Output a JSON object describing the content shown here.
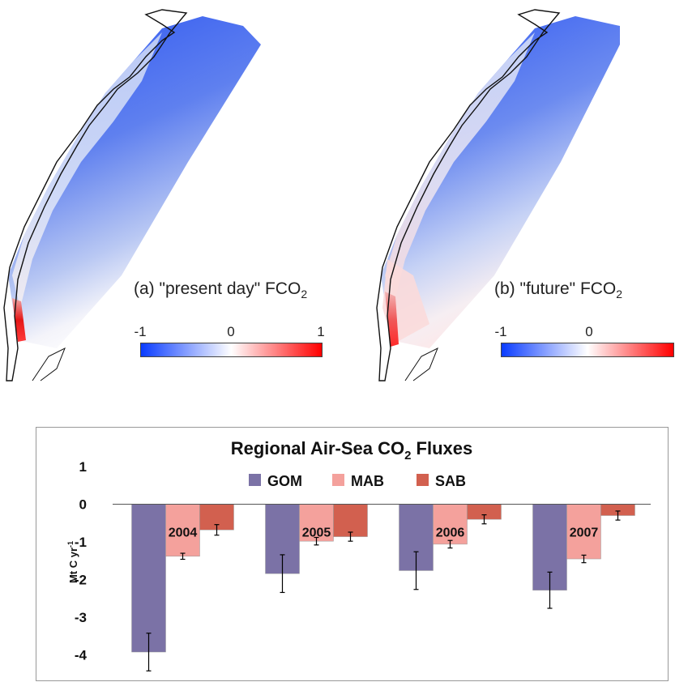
{
  "maps": [
    {
      "label_prefix": "(a) \"present day\" FCO",
      "label_sub": "2",
      "colorbar": {
        "ticks": [
          "-1",
          "0",
          "1"
        ],
        "low_color": "#0a3cff",
        "mid_color": "#ffffff",
        "high_color": "#ff0000"
      }
    },
    {
      "label_prefix": "(b) \"future\" FCO",
      "label_sub": "2",
      "colorbar": {
        "ticks": [
          "-1",
          "0"
        ],
        "low_color": "#0a3cff",
        "mid_color": "#ffffff",
        "high_color": "#ff0000"
      }
    }
  ],
  "chart_data": {
    "type": "bar",
    "title_prefix": "Regional Air-Sea CO",
    "title_sub": "2",
    "title_suffix": " Fluxes",
    "ylabel_prefix": "Mt C yr",
    "ylabel_sup": "-1",
    "categories": [
      "2004",
      "2005",
      "2006",
      "2007"
    ],
    "yticks": [
      "1",
      "0",
      "-1",
      "-2",
      "-3",
      "-4"
    ],
    "ylim": [
      -4.5,
      1
    ],
    "legend_position": "top-center",
    "series": [
      {
        "name": "GOM",
        "color": "#7b72a6",
        "values": [
          -3.92,
          -1.84,
          -1.76,
          -2.28
        ],
        "errors": [
          0.5,
          0.5,
          0.5,
          0.48
        ]
      },
      {
        "name": "MAB",
        "color": "#f4a19c",
        "values": [
          -1.38,
          -0.98,
          -1.06,
          -1.45
        ],
        "errors": [
          0.08,
          0.1,
          0.1,
          0.1
        ]
      },
      {
        "name": "SAB",
        "color": "#d2604f",
        "values": [
          -0.68,
          -0.86,
          -0.4,
          -0.3
        ],
        "errors": [
          0.14,
          0.12,
          0.12,
          0.12
        ]
      }
    ]
  }
}
